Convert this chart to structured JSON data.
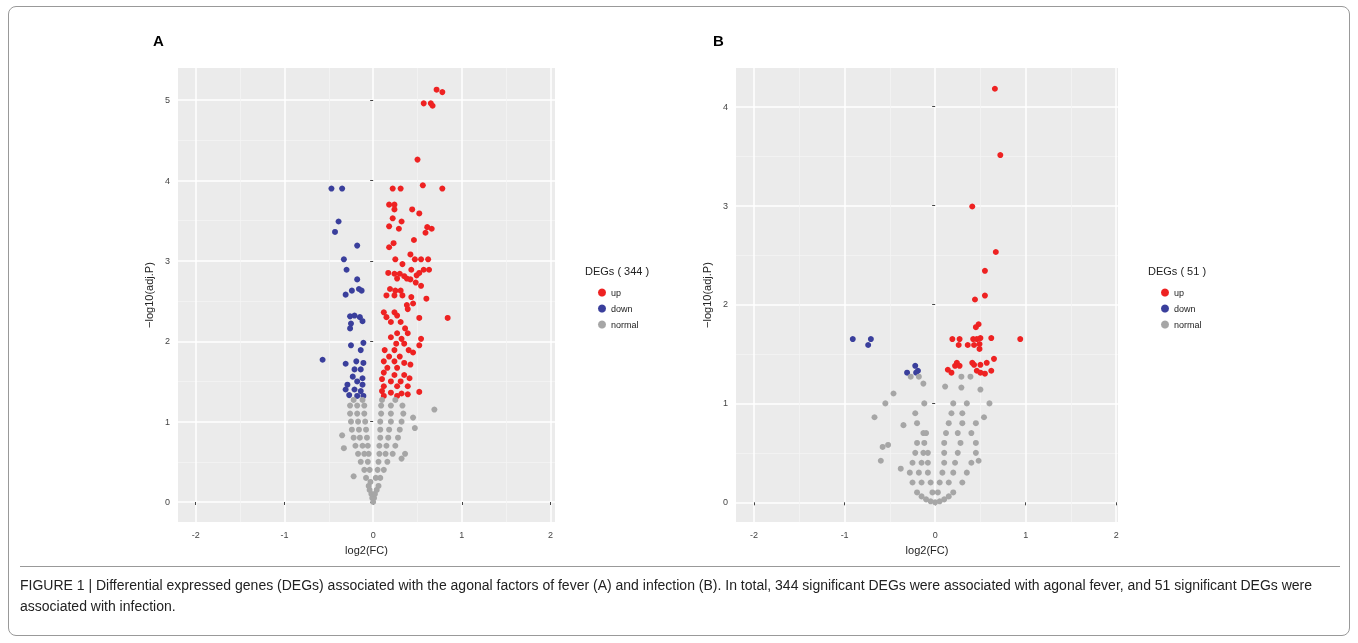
{
  "chart_data": [
    {
      "type": "scatter",
      "title": "A",
      "xlabel": "log2(FC)",
      "ylabel": "−log10(adj.P)",
      "legend_title": "DEGs ( 344 )",
      "legend": "right",
      "grid": true,
      "marker": "circle",
      "xlim": [
        -2.2,
        2.05
      ],
      "xticks": [
        -2,
        -1,
        0,
        1,
        2
      ],
      "ylim": [
        -0.25,
        5.4
      ],
      "yticks": [
        0,
        1,
        2,
        3,
        4,
        5
      ],
      "annotations": [
        "FIGURE 1 | Differential expressed genes (DEGs) associated with the agonal factors of fever (A) and infection (B). In total, 344 significant DEGs were associated with agonal fever, and 51 significant DEGs were associated with infection."
      ],
      "series": [
        {
          "name": "up",
          "color": "#ee2222",
          "x": [
            0.715,
            0.78,
            0.57,
            0.65,
            0.67,
            0.5,
            0.56,
            0.78,
            0.22,
            0.31,
            0.18,
            0.24,
            0.24,
            0.44,
            0.52,
            0.22,
            0.32,
            0.18,
            0.29,
            0.61,
            0.66,
            0.59,
            0.46,
            0.23,
            0.18,
            0.42,
            0.25,
            0.47,
            0.54,
            0.62,
            0.33,
            0.43,
            0.57,
            0.63,
            0.17,
            0.24,
            0.3,
            0.35,
            0.49,
            0.52,
            0.27,
            0.38,
            0.42,
            0.48,
            0.54,
            0.19,
            0.25,
            0.31,
            0.15,
            0.24,
            0.33,
            0.43,
            0.6,
            0.45,
            0.38,
            0.39,
            0.12,
            0.24,
            0.15,
            0.27,
            0.52,
            0.84,
            0.2,
            0.31,
            0.36,
            0.39,
            0.27,
            0.2,
            0.32,
            0.54,
            0.26,
            0.35,
            0.52,
            0.13,
            0.24,
            0.4,
            0.45,
            0.18,
            0.3,
            0.12,
            0.24,
            0.35,
            0.42,
            0.16,
            0.27,
            0.12,
            0.24,
            0.35,
            0.1,
            0.41,
            0.2,
            0.31,
            0.12,
            0.27,
            0.39,
            0.1,
            0.52,
            0.2,
            0.32,
            0.12,
            0.27,
            0.39
          ],
          "values": [
            5.13,
            5.1,
            4.96,
            4.96,
            4.93,
            4.26,
            3.94,
            3.9,
            3.9,
            3.9,
            3.7,
            3.7,
            3.64,
            3.64,
            3.59,
            3.53,
            3.49,
            3.43,
            3.4,
            3.42,
            3.4,
            3.35,
            3.26,
            3.22,
            3.17,
            3.08,
            3.02,
            3.02,
            3.02,
            3.02,
            2.96,
            2.89,
            2.89,
            2.89,
            2.85,
            2.84,
            2.84,
            2.81,
            2.82,
            2.85,
            2.78,
            2.78,
            2.77,
            2.73,
            2.69,
            2.65,
            2.63,
            2.63,
            2.57,
            2.57,
            2.57,
            2.55,
            2.53,
            2.47,
            2.45,
            2.4,
            2.36,
            2.36,
            2.3,
            2.32,
            2.29,
            2.29,
            2.24,
            2.24,
            2.16,
            2.1,
            2.1,
            2.05,
            2.03,
            2.03,
            1.97,
            1.97,
            1.95,
            1.89,
            1.89,
            1.89,
            1.86,
            1.81,
            1.81,
            1.75,
            1.75,
            1.73,
            1.71,
            1.67,
            1.67,
            1.61,
            1.58,
            1.58,
            1.53,
            1.54,
            1.5,
            1.5,
            1.44,
            1.44,
            1.44,
            1.38,
            1.37,
            1.36,
            1.35,
            1.32,
            1.32,
            1.34
          ]
        },
        {
          "name": "down",
          "color": "#3a3f9c",
          "x": [
            -0.47,
            -0.35,
            -0.39,
            -0.43,
            -0.18,
            -0.33,
            -0.3,
            -0.18,
            -0.24,
            -0.31,
            -0.16,
            -0.13,
            -0.26,
            -0.21,
            -0.15,
            -0.25,
            -0.12,
            -0.26,
            -0.25,
            -0.11,
            -0.14,
            -0.57,
            -0.31,
            -0.19,
            -0.11,
            -0.21,
            -0.14,
            -0.23,
            -0.12,
            -0.18,
            -0.29,
            -0.12,
            -0.31,
            -0.21,
            -0.14,
            -0.27,
            -0.18,
            -0.11
          ],
          "values": [
            3.9,
            3.9,
            3.49,
            3.36,
            3.19,
            3.02,
            2.89,
            2.77,
            2.63,
            2.58,
            2.65,
            2.63,
            2.31,
            2.32,
            2.3,
            2.22,
            2.25,
            2.16,
            1.95,
            1.98,
            1.89,
            1.77,
            1.72,
            1.75,
            1.73,
            1.65,
            1.65,
            1.56,
            1.54,
            1.5,
            1.46,
            1.46,
            1.4,
            1.4,
            1.38,
            1.33,
            1.32,
            1.32
          ]
        },
        {
          "name": "normal",
          "color": "#a6a6a6",
          "x": [
            0,
            -0.01,
            0.01,
            -0.02,
            0.02,
            -0.04,
            0.04,
            -0.05,
            0.06,
            -0.03,
            -0.08,
            0.08,
            0.03,
            -0.1,
            -0.04,
            0.05,
            0.12,
            -0.14,
            -0.06,
            0.06,
            0.16,
            -0.17,
            -0.1,
            -0.05,
            0.07,
            0.14,
            0.22,
            -0.2,
            -0.12,
            -0.06,
            0.07,
            0.15,
            0.25,
            -0.22,
            -0.15,
            -0.07,
            0.08,
            0.17,
            0.28,
            -0.24,
            -0.16,
            -0.08,
            0.08,
            0.18,
            0.3,
            -0.25,
            -0.17,
            -0.09,
            0.08,
            0.2,
            0.32,
            -0.26,
            -0.18,
            -0.1,
            0.09,
            0.2,
            0.34,
            -0.26,
            -0.18,
            -0.1,
            0.09,
            0.2,
            0.33,
            -0.22,
            -0.12,
            0.1,
            0.25,
            0.69,
            0.45,
            0.47,
            -0.35,
            -0.33,
            0.36,
            0.32,
            -0.22
          ],
          "values": [
            0,
            0.05,
            0.05,
            0.1,
            0.1,
            0.15,
            0.15,
            0.2,
            0.2,
            0.25,
            0.3,
            0.3,
            0.3,
            0.4,
            0.4,
            0.4,
            0.4,
            0.5,
            0.5,
            0.5,
            0.5,
            0.6,
            0.6,
            0.6,
            0.6,
            0.6,
            0.6,
            0.7,
            0.7,
            0.7,
            0.7,
            0.7,
            0.7,
            0.8,
            0.8,
            0.8,
            0.8,
            0.8,
            0.8,
            0.9,
            0.9,
            0.9,
            0.9,
            0.9,
            0.9,
            1.0,
            1.0,
            1.0,
            1.0,
            1.0,
            1.0,
            1.1,
            1.1,
            1.1,
            1.1,
            1.1,
            1.1,
            1.2,
            1.2,
            1.2,
            1.2,
            1.2,
            1.2,
            1.27,
            1.27,
            1.27,
            1.27,
            1.15,
            1.05,
            0.92,
            0.83,
            0.67,
            0.6,
            0.54,
            0.32
          ]
        }
      ]
    },
    {
      "type": "scatter",
      "title": "B",
      "xlabel": "log2(FC)",
      "ylabel": "−log10(adj.P)",
      "legend_title": "DEGs ( 51 )",
      "legend": "right",
      "grid": true,
      "marker": "circle",
      "xlim": [
        -2.2,
        2.02
      ],
      "xticks": [
        -2,
        -1,
        0,
        1,
        2
      ],
      "ylim": [
        -0.2,
        4.39
      ],
      "yticks": [
        0,
        1,
        2,
        3,
        4
      ],
      "series": [
        {
          "name": "up",
          "color": "#ee2222",
          "x": [
            0.66,
            0.72,
            0.41,
            0.67,
            0.55,
            0.55,
            0.44,
            0.48,
            0.45,
            0.19,
            0.27,
            0.42,
            0.46,
            0.5,
            0.62,
            0.94,
            0.26,
            0.36,
            0.43,
            0.49,
            0.49,
            0.65,
            0.24,
            0.41,
            0.57,
            0.5,
            0.22,
            0.27,
            0.14,
            0.46,
            0.62,
            0.18,
            0.5,
            0.55,
            0.43
          ],
          "values": [
            4.18,
            3.51,
            2.99,
            2.53,
            2.34,
            2.09,
            2.05,
            1.8,
            1.77,
            1.65,
            1.65,
            1.65,
            1.65,
            1.66,
            1.66,
            1.65,
            1.59,
            1.59,
            1.59,
            1.6,
            1.55,
            1.45,
            1.41,
            1.41,
            1.41,
            1.39,
            1.38,
            1.38,
            1.34,
            1.33,
            1.33,
            1.31,
            1.31,
            1.3,
            1.39
          ]
        },
        {
          "name": "down",
          "color": "#3a3f9c",
          "x": [
            -0.91,
            -0.71,
            -0.74,
            -0.22,
            -0.31,
            -0.19,
            -0.21
          ],
          "values": [
            1.65,
            1.65,
            1.59,
            1.38,
            1.31,
            1.33,
            1.31
          ]
        },
        {
          "name": "normal",
          "color": "#a6a6a6",
          "x": [
            0,
            -0.05,
            0.05,
            -0.1,
            0.1,
            -0.15,
            0.15,
            -0.2,
            0.2,
            -0.03,
            0.03,
            -0.25,
            -0.15,
            -0.05,
            0.05,
            0.15,
            0.3,
            -0.28,
            -0.18,
            -0.08,
            0.08,
            0.2,
            0.35,
            -0.25,
            -0.15,
            -0.08,
            0.1,
            0.22,
            0.4,
            -0.22,
            -0.13,
            -0.08,
            0.1,
            0.25,
            0.45,
            -0.2,
            -0.12,
            0.1,
            0.28,
            0.45,
            -0.13,
            -0.1,
            0.12,
            0.25,
            0.4,
            -0.2,
            0.15,
            0.3,
            0.45,
            -0.22,
            0.18,
            0.3,
            0.2,
            0.35,
            -0.12,
            -0.46,
            -0.55,
            -0.67,
            -0.35,
            -0.58,
            -0.52,
            -0.6,
            -0.38,
            -0.13,
            -0.18,
            -0.27,
            0.29,
            0.39,
            0.11,
            0.29,
            0.5,
            0.6,
            0.54,
            0.48
          ],
          "values": [
            0,
            0.01,
            0.01,
            0.03,
            0.03,
            0.06,
            0.06,
            0.1,
            0.1,
            0.1,
            0.1,
            0.2,
            0.2,
            0.2,
            0.2,
            0.2,
            0.2,
            0.3,
            0.3,
            0.3,
            0.3,
            0.3,
            0.3,
            0.4,
            0.4,
            0.4,
            0.4,
            0.4,
            0.4,
            0.5,
            0.5,
            0.5,
            0.5,
            0.5,
            0.5,
            0.6,
            0.6,
            0.6,
            0.6,
            0.6,
            0.7,
            0.7,
            0.7,
            0.7,
            0.7,
            0.8,
            0.8,
            0.8,
            0.8,
            0.9,
            0.9,
            0.9,
            1.0,
            1.0,
            1.0,
            1.1,
            1.0,
            0.86,
            0.78,
            0.56,
            0.58,
            0.42,
            0.34,
            1.2,
            1.27,
            1.27,
            1.27,
            1.27,
            1.17,
            1.16,
            1.14,
            1.0,
            0.86,
            0.42
          ]
        }
      ]
    }
  ]
}
